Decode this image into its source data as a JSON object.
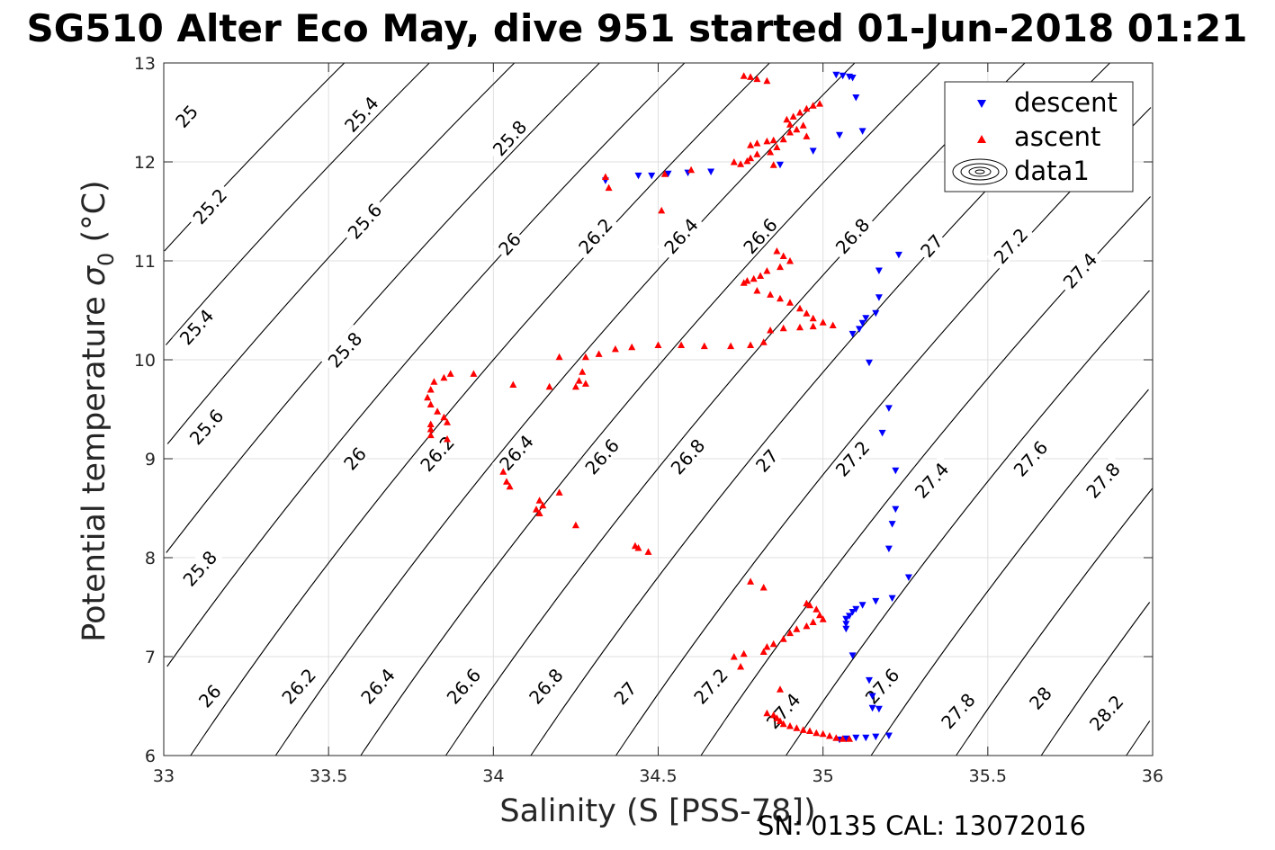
{
  "chart_data": {
    "type": "scatter",
    "title": "SG510 Alter Eco May, dive 951 started 01-Jun-2018 01:21",
    "xlabel": "Salinity (S [PSS-78])",
    "ylabel_main": "Potential temperature ",
    "ylabel_sym": "σ",
    "ylabel_sub": "0",
    "ylabel_unit": " (°C)",
    "footer": "SN: 0135  CAL: 13072016",
    "xlim": [
      33,
      36
    ],
    "ylim": [
      6,
      13
    ],
    "xticks": [
      "33",
      "33.5",
      "34",
      "34.5",
      "35",
      "35.5",
      "36"
    ],
    "yticks": [
      "6",
      "7",
      "8",
      "9",
      "10",
      "11",
      "12",
      "13"
    ],
    "grid": true,
    "legend_position": "top-right",
    "legend": [
      "descent",
      "ascent",
      "data1"
    ],
    "colors": {
      "descent": "#0000ff",
      "ascent": "#ff0000",
      "contour": "#000000"
    },
    "contour_levels": [
      25.0,
      25.2,
      25.4,
      25.6,
      25.8,
      26.0,
      26.2,
      26.4,
      26.6,
      26.8,
      27.0,
      27.2,
      27.4,
      27.6,
      27.8,
      28.0,
      28.2
    ],
    "contour_labels": [
      {
        "text": "25",
        "x": 33.07,
        "y": 12.46
      },
      {
        "text": "25.4",
        "x": 33.6,
        "y": 12.48
      },
      {
        "text": "25.8",
        "x": 34.05,
        "y": 12.24
      },
      {
        "text": "25.2",
        "x": 33.14,
        "y": 11.55
      },
      {
        "text": "25.6",
        "x": 33.61,
        "y": 11.4
      },
      {
        "text": "26",
        "x": 34.05,
        "y": 11.17
      },
      {
        "text": "26.2",
        "x": 34.31,
        "y": 11.25
      },
      {
        "text": "26.4",
        "x": 34.57,
        "y": 11.25
      },
      {
        "text": "26.6",
        "x": 34.81,
        "y": 11.25
      },
      {
        "text": "26.8",
        "x": 35.09,
        "y": 11.25
      },
      {
        "text": "27",
        "x": 35.33,
        "y": 11.15
      },
      {
        "text": "27.2",
        "x": 35.57,
        "y": 11.15
      },
      {
        "text": "27.4",
        "x": 35.78,
        "y": 10.9
      },
      {
        "text": "25.4",
        "x": 33.1,
        "y": 10.33
      },
      {
        "text": "25.8",
        "x": 33.55,
        "y": 10.1
      },
      {
        "text": "25.6",
        "x": 33.13,
        "y": 9.32
      },
      {
        "text": "26",
        "x": 33.58,
        "y": 9.0
      },
      {
        "text": "26.2",
        "x": 33.83,
        "y": 9.05
      },
      {
        "text": "26.4",
        "x": 34.07,
        "y": 9.06
      },
      {
        "text": "26.6",
        "x": 34.33,
        "y": 9.02
      },
      {
        "text": "26.8",
        "x": 34.59,
        "y": 9.02
      },
      {
        "text": "27",
        "x": 34.83,
        "y": 8.98
      },
      {
        "text": "27.2",
        "x": 35.09,
        "y": 9.0
      },
      {
        "text": "27.4",
        "x": 35.33,
        "y": 8.78
      },
      {
        "text": "27.6",
        "x": 35.63,
        "y": 9.0
      },
      {
        "text": "27.8",
        "x": 35.85,
        "y": 8.78
      },
      {
        "text": "25.8",
        "x": 33.11,
        "y": 7.89
      },
      {
        "text": "26",
        "x": 33.14,
        "y": 6.6
      },
      {
        "text": "26.2",
        "x": 33.41,
        "y": 6.7
      },
      {
        "text": "26.4",
        "x": 33.65,
        "y": 6.7
      },
      {
        "text": "26.6",
        "x": 33.91,
        "y": 6.7
      },
      {
        "text": "26.8",
        "x": 34.16,
        "y": 6.7
      },
      {
        "text": "27",
        "x": 34.4,
        "y": 6.63
      },
      {
        "text": "27.2",
        "x": 34.66,
        "y": 6.7
      },
      {
        "text": "27.4",
        "x": 34.88,
        "y": 6.45
      },
      {
        "text": "27.6",
        "x": 35.18,
        "y": 6.7
      },
      {
        "text": "27.8",
        "x": 35.41,
        "y": 6.45
      },
      {
        "text": "28",
        "x": 35.66,
        "y": 6.58
      },
      {
        "text": "28.2",
        "x": 35.86,
        "y": 6.43
      }
    ],
    "series": [
      {
        "name": "descent",
        "marker": "triangle-down",
        "points": [
          [
            35.04,
            12.88
          ],
          [
            35.06,
            12.87
          ],
          [
            35.08,
            12.86
          ],
          [
            35.09,
            12.85
          ],
          [
            35.1,
            12.65
          ],
          [
            35.12,
            12.31
          ],
          [
            35.05,
            12.27
          ],
          [
            34.97,
            12.11
          ],
          [
            34.87,
            11.97
          ],
          [
            34.66,
            11.9
          ],
          [
            34.59,
            11.89
          ],
          [
            34.53,
            11.88
          ],
          [
            34.48,
            11.86
          ],
          [
            34.44,
            11.86
          ],
          [
            34.34,
            11.81
          ],
          [
            35.23,
            11.06
          ],
          [
            35.17,
            10.9
          ],
          [
            35.17,
            10.63
          ],
          [
            35.13,
            10.42
          ],
          [
            35.16,
            10.47
          ],
          [
            35.12,
            10.37
          ],
          [
            35.11,
            10.31
          ],
          [
            35.09,
            10.26
          ],
          [
            35.14,
            9.97
          ],
          [
            35.2,
            9.51
          ],
          [
            35.18,
            9.26
          ],
          [
            35.22,
            8.88
          ],
          [
            35.22,
            8.49
          ],
          [
            35.21,
            8.34
          ],
          [
            35.2,
            8.09
          ],
          [
            35.26,
            7.8
          ],
          [
            35.21,
            7.59
          ],
          [
            35.16,
            7.56
          ],
          [
            35.12,
            7.52
          ],
          [
            35.1,
            7.48
          ],
          [
            35.09,
            7.45
          ],
          [
            35.08,
            7.41
          ],
          [
            35.07,
            7.38
          ],
          [
            35.07,
            7.33
          ],
          [
            35.07,
            7.28
          ],
          [
            35.09,
            7.01
          ],
          [
            35.14,
            6.76
          ],
          [
            35.15,
            6.6
          ],
          [
            35.17,
            6.47
          ],
          [
            35.15,
            6.48
          ],
          [
            35.2,
            6.2
          ],
          [
            35.16,
            6.19
          ],
          [
            35.13,
            6.18
          ],
          [
            35.1,
            6.18
          ],
          [
            35.07,
            6.17
          ],
          [
            35.05,
            6.16
          ]
        ]
      },
      {
        "name": "ascent",
        "marker": "triangle-up",
        "points": [
          [
            34.76,
            12.87
          ],
          [
            34.78,
            12.86
          ],
          [
            34.8,
            12.84
          ],
          [
            34.83,
            12.82
          ],
          [
            34.99,
            12.59
          ],
          [
            34.97,
            12.57
          ],
          [
            34.95,
            12.54
          ],
          [
            34.93,
            12.5
          ],
          [
            34.91,
            12.46
          ],
          [
            34.89,
            12.43
          ],
          [
            34.9,
            12.38
          ],
          [
            34.94,
            12.37
          ],
          [
            34.92,
            12.33
          ],
          [
            34.9,
            12.3
          ],
          [
            34.95,
            12.26
          ],
          [
            34.88,
            12.23
          ],
          [
            34.85,
            12.22
          ],
          [
            34.83,
            12.21
          ],
          [
            34.8,
            12.19
          ],
          [
            34.78,
            12.17
          ],
          [
            34.86,
            12.15
          ],
          [
            34.84,
            12.1
          ],
          [
            34.8,
            12.08
          ],
          [
            34.78,
            12.04
          ],
          [
            34.77,
            12.01
          ],
          [
            34.75,
            11.98
          ],
          [
            34.73,
            12.0
          ],
          [
            34.85,
            11.97
          ],
          [
            34.6,
            11.92
          ],
          [
            34.52,
            11.88
          ],
          [
            34.34,
            11.85
          ],
          [
            34.35,
            11.74
          ],
          [
            34.51,
            11.51
          ],
          [
            34.86,
            11.1
          ],
          [
            34.88,
            11.05
          ],
          [
            34.9,
            11.0
          ],
          [
            34.87,
            10.94
          ],
          [
            34.83,
            10.9
          ],
          [
            34.81,
            10.85
          ],
          [
            34.79,
            10.82
          ],
          [
            34.77,
            10.8
          ],
          [
            34.76,
            10.78
          ],
          [
            34.8,
            10.7
          ],
          [
            34.84,
            10.66
          ],
          [
            34.87,
            10.62
          ],
          [
            34.9,
            10.58
          ],
          [
            34.93,
            10.52
          ],
          [
            34.95,
            10.47
          ],
          [
            34.97,
            10.42
          ],
          [
            35.0,
            10.38
          ],
          [
            35.03,
            10.35
          ],
          [
            34.97,
            10.34
          ],
          [
            34.93,
            10.33
          ],
          [
            34.88,
            10.32
          ],
          [
            34.84,
            10.3
          ],
          [
            34.82,
            10.18
          ],
          [
            34.78,
            10.15
          ],
          [
            34.72,
            10.14
          ],
          [
            34.64,
            10.14
          ],
          [
            34.57,
            10.15
          ],
          [
            34.5,
            10.15
          ],
          [
            34.42,
            10.13
          ],
          [
            34.37,
            10.11
          ],
          [
            34.32,
            10.06
          ],
          [
            34.28,
            10.03
          ],
          [
            34.2,
            10.03
          ],
          [
            34.27,
            9.88
          ],
          [
            34.26,
            9.79
          ],
          [
            34.28,
            9.76
          ],
          [
            34.25,
            9.73
          ],
          [
            34.17,
            9.73
          ],
          [
            34.06,
            9.75
          ],
          [
            33.94,
            9.86
          ],
          [
            33.87,
            9.86
          ],
          [
            33.85,
            9.82
          ],
          [
            33.82,
            9.78
          ],
          [
            33.81,
            9.7
          ],
          [
            33.8,
            9.62
          ],
          [
            33.81,
            9.55
          ],
          [
            33.83,
            9.48
          ],
          [
            33.85,
            9.42
          ],
          [
            33.86,
            9.37
          ],
          [
            33.81,
            9.35
          ],
          [
            33.81,
            9.3
          ],
          [
            33.86,
            9.2
          ],
          [
            33.81,
            9.24
          ],
          [
            34.03,
            8.87
          ],
          [
            34.04,
            8.77
          ],
          [
            34.05,
            8.72
          ],
          [
            34.2,
            8.66
          ],
          [
            34.14,
            8.58
          ],
          [
            34.15,
            8.53
          ],
          [
            34.13,
            8.49
          ],
          [
            34.14,
            8.45
          ],
          [
            34.25,
            8.33
          ],
          [
            34.43,
            8.12
          ],
          [
            34.44,
            8.1
          ],
          [
            34.47,
            8.06
          ],
          [
            34.78,
            7.76
          ],
          [
            34.82,
            7.7
          ],
          [
            34.95,
            7.54
          ],
          [
            34.96,
            7.52
          ],
          [
            34.98,
            7.48
          ],
          [
            34.99,
            7.42
          ],
          [
            35.0,
            7.38
          ],
          [
            34.97,
            7.35
          ],
          [
            34.95,
            7.31
          ],
          [
            34.92,
            7.28
          ],
          [
            34.9,
            7.24
          ],
          [
            34.88,
            7.18
          ],
          [
            34.85,
            7.13
          ],
          [
            34.83,
            7.1
          ],
          [
            34.82,
            7.05
          ],
          [
            34.76,
            7.03
          ],
          [
            34.73,
            7.0
          ],
          [
            34.75,
            6.9
          ],
          [
            34.87,
            6.67
          ],
          [
            34.83,
            6.43
          ],
          [
            34.85,
            6.41
          ],
          [
            34.86,
            6.38
          ],
          [
            34.87,
            6.35
          ],
          [
            34.88,
            6.32
          ],
          [
            34.9,
            6.3
          ],
          [
            34.92,
            6.28
          ],
          [
            34.94,
            6.26
          ],
          [
            34.96,
            6.25
          ],
          [
            34.98,
            6.23
          ],
          [
            35.0,
            6.22
          ],
          [
            35.02,
            6.2
          ],
          [
            35.04,
            6.18
          ],
          [
            35.06,
            6.17
          ],
          [
            35.08,
            6.17
          ]
        ]
      }
    ]
  }
}
